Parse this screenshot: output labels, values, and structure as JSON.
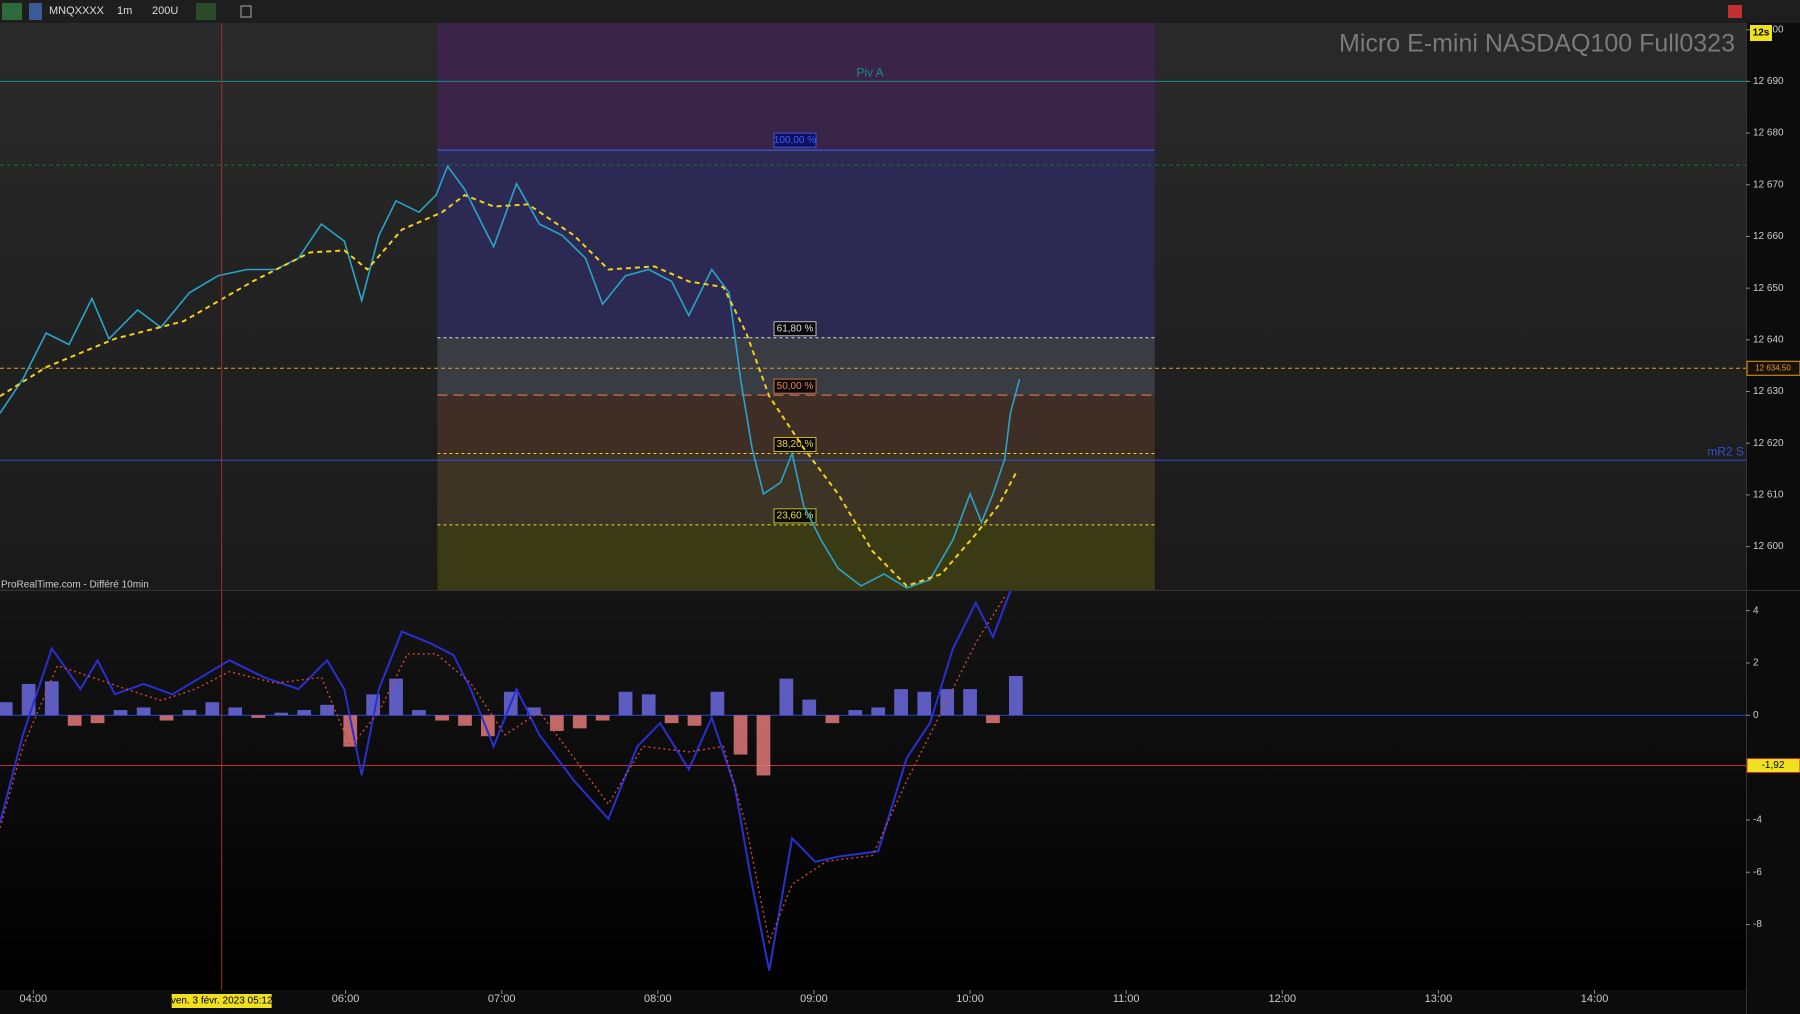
{
  "toolbar": {
    "symbol": "MNQXXXX",
    "timeframe": "1m",
    "units": "200U"
  },
  "chart_data": [
    {
      "type": "line",
      "title": "Micro E-mini NASDAQ100 Full0323",
      "source": "ProRealTime.com - Différé 10min",
      "badge": "12s",
      "xlim": [
        227.2,
        898.2
      ],
      "ylim": [
        12591.6,
        12701.3
      ],
      "yticks": [
        {
          "value": 12600,
          "label": "12 600"
        },
        {
          "value": 12610,
          "label": "12 610"
        },
        {
          "value": 12620,
          "label": "12 620"
        },
        {
          "value": 12630,
          "label": "12 630"
        },
        {
          "value": 12640,
          "label": "12 640"
        },
        {
          "value": 12650,
          "label": "12 650"
        },
        {
          "value": 12660,
          "label": "12 660"
        },
        {
          "value": 12670,
          "label": "12 670"
        },
        {
          "value": 12680,
          "label": "12 680"
        },
        {
          "value": 12690,
          "label": "12 690"
        },
        {
          "value": 12700,
          "label": "12 700"
        }
      ],
      "series": [
        {
          "color": "#2ba3c9",
          "x": [
            227.2,
            236.0,
            244.9,
            253.7,
            262.5,
            269.1,
            280.1,
            289.0,
            300.0,
            311.0,
            322.1,
            333.1,
            341.9,
            350.7,
            359.5,
            366.2,
            372.8,
            379.4,
            388.2,
            394.8,
            399.2,
            405.8,
            416.9,
            425.7,
            434.5,
            443.3,
            452.2,
            458.8,
            467.6,
            476.5,
            485.3,
            491.9,
            500.7,
            507.4,
            511.8,
            516.2,
            520.6,
            527.2,
            531.6,
            536.0,
            542.7,
            549.3,
            558.1,
            566.9,
            575.7,
            584.6,
            593.4,
            600.0,
            604.4,
            608.8,
            613.3,
            615.5,
            619.0
          ],
          "values": [
            12625.8,
            12632.4,
            12641.3,
            12639.1,
            12648.0,
            12640.2,
            12645.8,
            12642.4,
            12649.1,
            12652.4,
            12653.6,
            12653.6,
            12655.8,
            12662.4,
            12659.1,
            12647.6,
            12660.2,
            12666.9,
            12664.7,
            12668.0,
            12673.6,
            12669.1,
            12658.0,
            12670.2,
            12662.4,
            12660.2,
            12655.8,
            12646.9,
            12652.4,
            12653.6,
            12651.3,
            12644.7,
            12653.6,
            12649.1,
            12632.4,
            12619.1,
            12610.2,
            12612.4,
            12618.0,
            12608.0,
            12601.3,
            12595.8,
            12592.4,
            12594.7,
            12592.0,
            12593.6,
            12601.3,
            12610.2,
            12604.7,
            12610.2,
            12616.9,
            12625.8,
            12632.4
          ]
        },
        {
          "color": "#f0d020",
          "dash": true,
          "x": [
            227.2,
            244.9,
            271.3,
            297.8,
            324.3,
            346.3,
            359.5,
            368.4,
            381.6,
            397.1,
            405.8,
            416.9,
            430.2,
            447.8,
            461.0,
            478.7,
            491.9,
            505.2,
            514.0,
            522.8,
            536.0,
            549.3,
            562.5,
            575.7,
            589.0,
            602.2,
            611.0,
            618.1
          ],
          "values": [
            12629.1,
            12634.7,
            12640.2,
            12643.6,
            12651.3,
            12656.9,
            12657.3,
            12653.6,
            12661.3,
            12664.7,
            12668.0,
            12665.8,
            12666.2,
            12660.2,
            12653.6,
            12654.2,
            12651.3,
            12650.2,
            12641.3,
            12629.1,
            12619.1,
            12610.2,
            12599.1,
            12592.4,
            12594.7,
            12602.4,
            12608.0,
            12614.7
          ]
        }
      ],
      "levels": [
        {
          "label": "Piv A",
          "value": 12690,
          "color": "#1c8c8c"
        },
        {
          "value": 12673.8,
          "color": "#1f6a3a",
          "dash": true
        },
        {
          "label": "mR2 S",
          "value": 12616.7,
          "color": "#3050d0"
        },
        {
          "value": 12634.5,
          "value_label": "12 634,50",
          "color": "#e0a020",
          "dash": true
        }
      ],
      "fibonacci": {
        "x_start": 395.3,
        "x_end": 671,
        "levels": [
          {
            "label": "100,00 %",
            "value": 12676.7,
            "color": "#4060ff"
          },
          {
            "label": "61,80 %",
            "value": 12640.4,
            "color": "#dddddd"
          },
          {
            "label": "50,00 %",
            "value": 12629.3,
            "color": "#f08050"
          },
          {
            "label": "38,20 %",
            "value": 12618.0,
            "color": "#f0d030"
          },
          {
            "label": "23,60 %",
            "value": 12604.2,
            "color": "#e8e030"
          }
        ]
      }
    },
    {
      "type": "bar",
      "xlim": [
        227.2,
        898.2
      ],
      "ylim": [
        -10.5,
        4.75
      ],
      "yticks": [
        4,
        2,
        0,
        -2,
        -4,
        -6,
        -8
      ],
      "xticks": [
        {
          "value": 240,
          "label": "04:00"
        },
        {
          "value": 360,
          "label": "06:00"
        },
        {
          "value": 420,
          "label": "07:00"
        },
        {
          "value": 480,
          "label": "08:00"
        },
        {
          "value": 540,
          "label": "09:00"
        },
        {
          "value": 600,
          "label": "10:00"
        },
        {
          "value": 660,
          "label": "11:00"
        },
        {
          "value": 720,
          "label": "12:00"
        },
        {
          "value": 780,
          "label": "13:00"
        },
        {
          "value": 840,
          "label": "14:00"
        }
      ],
      "x": [
        229.4,
        238.2,
        247.1,
        255.9,
        264.7,
        273.5,
        282.4,
        291.2,
        300.0,
        308.8,
        317.6,
        326.5,
        335.3,
        344.1,
        352.9,
        361.8,
        370.6,
        379.4,
        388.2,
        397.1,
        405.9,
        414.7,
        423.5,
        432.4,
        441.2,
        450.0,
        458.8,
        467.6,
        476.5,
        485.3,
        494.1,
        502.9,
        511.8,
        520.6,
        529.4,
        538.2,
        547.1,
        555.9,
        564.7,
        573.5,
        582.4,
        591.2,
        600.0,
        608.8,
        617.6
      ],
      "values": [
        0.5,
        1.2,
        1.3,
        -0.4,
        -0.3,
        0.2,
        0.3,
        -0.2,
        0.2,
        0.5,
        0.3,
        -0.1,
        0.1,
        0.2,
        0.4,
        -1.2,
        0.8,
        1.4,
        0.2,
        -0.2,
        -0.4,
        -0.8,
        0.9,
        0.3,
        -0.6,
        -0.5,
        -0.2,
        0.9,
        0.8,
        -0.3,
        -0.4,
        0.9,
        -1.5,
        -2.3,
        1.4,
        0.6,
        -0.3,
        0.2,
        0.3,
        1.0,
        0.9,
        1.0,
        1.0,
        -0.3,
        1.5
      ],
      "colors": {
        "positive": "#6a6ae0",
        "negative": "#e07878"
      },
      "lines": [
        {
          "color": "#2830d0",
          "x": [
            227.2,
            236.0,
            247.1,
            258.1,
            264.7,
            271.3,
            282.4,
            293.4,
            304.4,
            315.4,
            328.7,
            341.9,
            352.9,
            359.5,
            366.2,
            372.8,
            381.6,
            392.7,
            401.5,
            408.1,
            416.9,
            425.7,
            434.5,
            447.8,
            461.0,
            472.1,
            480.9,
            491.9,
            500.7,
            509.6,
            516.2,
            522.8,
            531.6,
            540.5,
            549.3,
            564.7,
            575.7,
            584.6,
            593.4,
            602.2,
            608.8,
            615.5
          ],
          "values": [
            -4.1,
            -0.75,
            2.55,
            1.0,
            2.1,
            0.8,
            1.2,
            0.8,
            1.45,
            2.1,
            1.45,
            1.0,
            2.1,
            1.0,
            -2.29,
            1.0,
            3.2,
            2.75,
            2.3,
            1.0,
            -1.19,
            1.0,
            -0.75,
            -2.5,
            -3.96,
            -1.19,
            -0.3,
            -2.07,
            -0.09,
            -2.73,
            -6.46,
            -9.76,
            -4.7,
            -5.6,
            -5.4,
            -5.2,
            -1.63,
            -0.3,
            2.55,
            4.3,
            2.99,
            4.75
          ]
        },
        {
          "color": "#d04830",
          "dash": true,
          "x": [
            227.2,
            236.0,
            249.3,
            262.5,
            275.7,
            289.0,
            302.2,
            315.4,
            333.1,
            350.7,
            361.8,
            372.8,
            383.8,
            394.8,
            408.1,
            421.3,
            434.5,
            447.8,
            461.0,
            474.3,
            491.9,
            505.2,
            514.0,
            522.8,
            531.6,
            544.9,
            562.5,
            575.7,
            589.0,
            602.2,
            613.3
          ],
          "values": [
            -4.3,
            -1.2,
            1.9,
            1.45,
            1.0,
            0.57,
            1.0,
            1.67,
            1.23,
            1.45,
            -1.2,
            0.13,
            2.35,
            2.35,
            1.23,
            -0.75,
            0.13,
            -1.63,
            -3.39,
            -1.19,
            -1.4,
            -1.19,
            -4.26,
            -8.66,
            -6.46,
            -5.58,
            -5.36,
            -2.5,
            0.13,
            2.77,
            4.53
          ]
        }
      ],
      "levels": [
        {
          "value": 0,
          "color": "#2840d0"
        },
        {
          "value": -1.92,
          "value_label": "-1,92",
          "color": "#c03030"
        }
      ],
      "cursor": {
        "x": 312.4,
        "label": "ven. 3 févr. 2023 05:12"
      }
    }
  ]
}
